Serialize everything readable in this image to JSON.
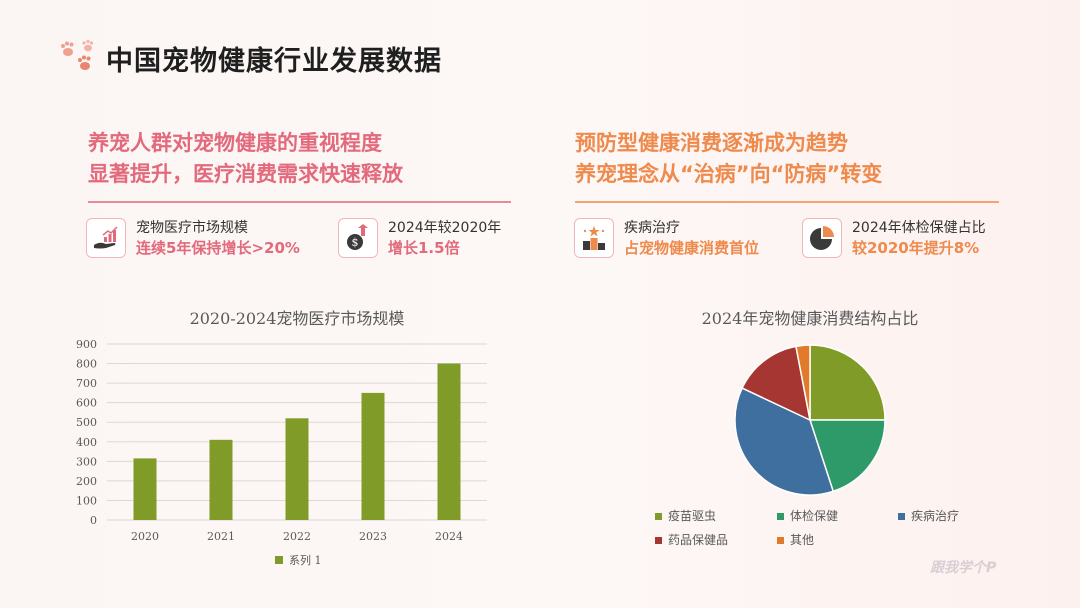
{
  "header": {
    "title": "中国宠物健康行业发展数据"
  },
  "left": {
    "headline": [
      "养宠人群对宠物健康的重视程度",
      "显著提升，医疗消费需求快速释放"
    ],
    "stats": [
      {
        "icon": "hand-growth-icon",
        "label": "宠物医疗市场规模",
        "value": "连续5年保持增长>20%"
      },
      {
        "icon": "money-rise-icon",
        "label": "2024年较2020年",
        "value": "增长1.5倍"
      }
    ]
  },
  "right": {
    "headline": [
      "预防型健康消费逐渐成为趋势",
      "养宠理念从“治病”向“防病”转变"
    ],
    "stats": [
      {
        "icon": "podium-icon",
        "label": "疾病治疗",
        "value": "占宠物健康消费首位"
      },
      {
        "icon": "pie-icon",
        "label": "2024年体检保健占比",
        "value": "较2020年提升8%"
      }
    ]
  },
  "colors": {
    "pink": "#e26a7c",
    "orange": "#ef8a4d",
    "bar": "#809b27"
  },
  "chart_data": [
    {
      "type": "bar",
      "title": "2020-2024宠物医疗市场规模",
      "categories": [
        "2020",
        "2021",
        "2022",
        "2023",
        "2024"
      ],
      "series": [
        {
          "name": "系列 1",
          "values": [
            315,
            410,
            520,
            650,
            800
          ]
        }
      ],
      "ylim": [
        0,
        900
      ],
      "yticks": [
        0,
        100,
        200,
        300,
        400,
        500,
        600,
        700,
        800,
        900
      ],
      "grid": true,
      "legend": "bottom"
    },
    {
      "type": "pie",
      "title": "2024年宠物健康消费结构占比",
      "labels": [
        "疫苗驱虫",
        "体检保健",
        "疾病治疗",
        "药品保健品",
        "其他"
      ],
      "values": [
        25,
        20,
        37,
        15,
        3
      ],
      "colors": [
        "#809b27",
        "#2e9a6a",
        "#3f6f9e",
        "#a63632",
        "#e17a2a"
      ],
      "legend": "bottom"
    }
  ],
  "watermark": "跟我学个P"
}
